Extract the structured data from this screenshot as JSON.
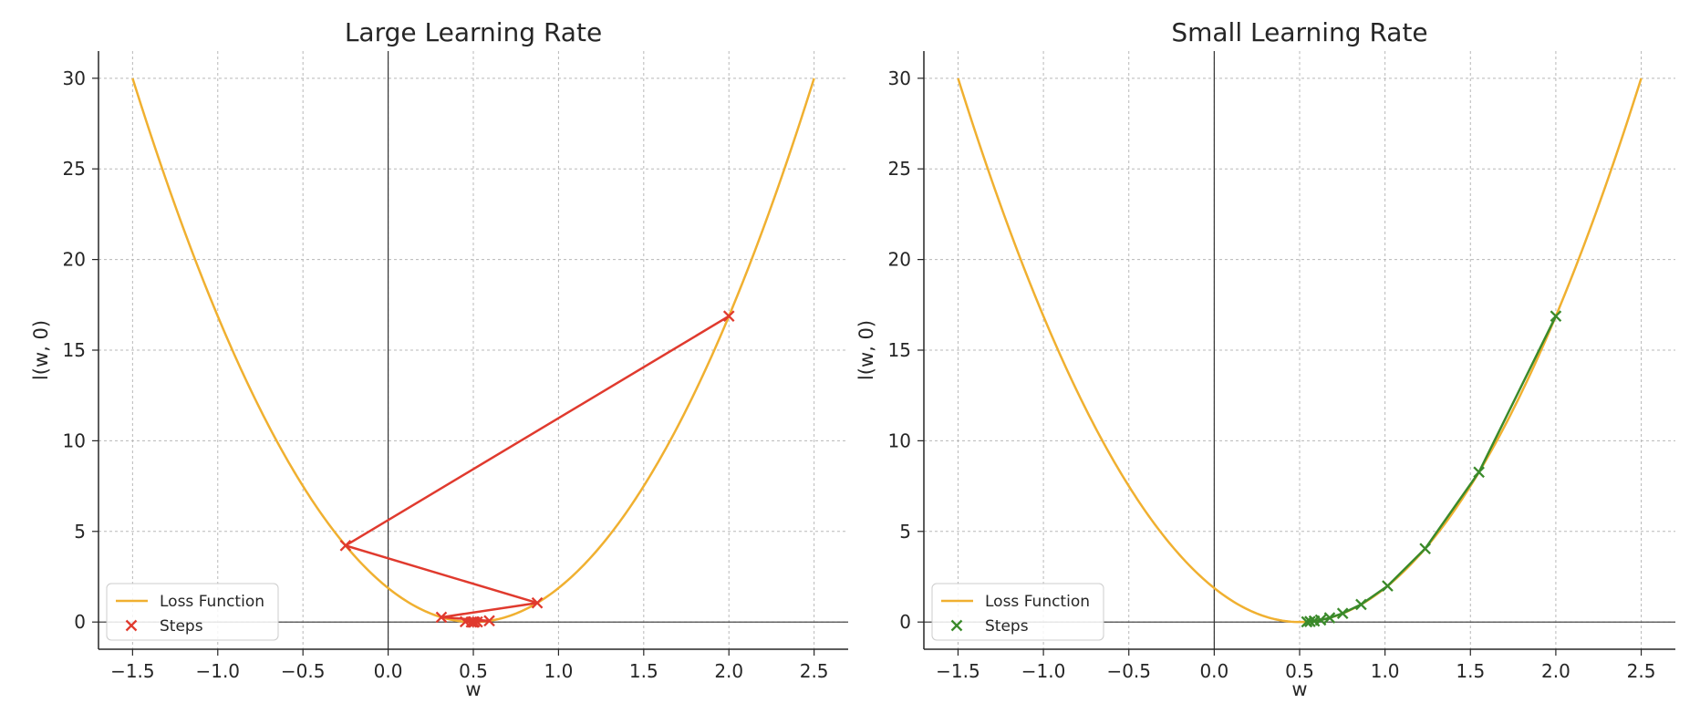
{
  "chart_data": [
    {
      "type": "line",
      "title": "Large Learning Rate",
      "xlabel": "w",
      "ylabel": "l(w, 0)",
      "xlim": [
        -1.7,
        2.7
      ],
      "ylim": [
        -1.5,
        31.5
      ],
      "xticks": [
        -1.5,
        -1.0,
        -0.5,
        0.0,
        0.5,
        1.0,
        1.5,
        2.0,
        2.5
      ],
      "xtick_labels": [
        "−1.5",
        "−1.0",
        "−0.5",
        "0.0",
        "0.5",
        "1.0",
        "1.5",
        "2.0",
        "2.5"
      ],
      "yticks": [
        0,
        5,
        10,
        15,
        20,
        25,
        30
      ],
      "ytick_labels": [
        "0",
        "5",
        "10",
        "15",
        "20",
        "25",
        "30"
      ],
      "grid": true,
      "legend": {
        "position": "lower-left",
        "entries": [
          {
            "label": "Loss Function",
            "kind": "line",
            "color": "#f0b030"
          },
          {
            "label": "Steps",
            "kind": "marker",
            "color": "#e03a2e"
          }
        ]
      },
      "series": [
        {
          "name": "Loss Function",
          "formula": "7.5*(w-0.5)^2",
          "domain": [
            -1.5,
            2.5
          ],
          "color": "#f0b030"
        },
        {
          "name": "Steps",
          "color": "#e03a2e",
          "x": [
            2.0,
            -0.25,
            0.875,
            0.3125,
            0.59375,
            0.453125,
            0.5234,
            0.4883,
            0.5059,
            0.4971,
            0.5015
          ],
          "y": [
            16.875,
            4.219,
            1.055,
            0.264,
            0.066,
            0.016,
            0.004,
            0.001,
            0.0003,
            0.0001,
            0.0
          ]
        }
      ]
    },
    {
      "type": "line",
      "title": "Small Learning Rate",
      "xlabel": "w",
      "ylabel": "l(w, 0)",
      "xlim": [
        -1.7,
        2.7
      ],
      "ylim": [
        -1.5,
        31.5
      ],
      "xticks": [
        -1.5,
        -1.0,
        -0.5,
        0.0,
        0.5,
        1.0,
        1.5,
        2.0,
        2.5
      ],
      "xtick_labels": [
        "−1.5",
        "−1.0",
        "−0.5",
        "0.0",
        "0.5",
        "1.0",
        "1.5",
        "2.0",
        "2.5"
      ],
      "yticks": [
        0,
        5,
        10,
        15,
        20,
        25,
        30
      ],
      "ytick_labels": [
        "0",
        "5",
        "10",
        "15",
        "20",
        "25",
        "30"
      ],
      "grid": true,
      "legend": {
        "position": "lower-left",
        "entries": [
          {
            "label": "Loss Function",
            "kind": "line",
            "color": "#f0b030"
          },
          {
            "label": "Steps",
            "kind": "marker",
            "color": "#3a8a2a"
          }
        ]
      },
      "series": [
        {
          "name": "Loss Function",
          "formula": "7.5*(w-0.5)^2",
          "domain": [
            -1.5,
            2.5
          ],
          "color": "#f0b030"
        },
        {
          "name": "Steps",
          "color": "#3a8a2a",
          "x": [
            2.0,
            1.55,
            1.235,
            1.015,
            0.86,
            0.752,
            0.676,
            0.623,
            0.586,
            0.561,
            0.542
          ],
          "y": [
            16.875,
            8.27,
            4.05,
            1.99,
            0.97,
            0.48,
            0.23,
            0.11,
            0.056,
            0.028,
            0.013
          ]
        }
      ]
    }
  ]
}
